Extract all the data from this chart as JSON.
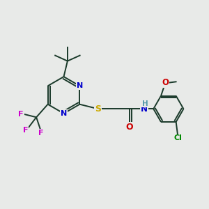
{
  "background_color": "#e8eae8",
  "bond_color": "#1a3a2a",
  "atom_colors": {
    "N": "#0000cc",
    "S": "#ccaa00",
    "O": "#cc0000",
    "F": "#cc00cc",
    "Cl": "#008800",
    "H": "#5599aa",
    "C": "#1a3a2a"
  },
  "figsize": [
    3.0,
    3.0
  ],
  "dpi": 100
}
